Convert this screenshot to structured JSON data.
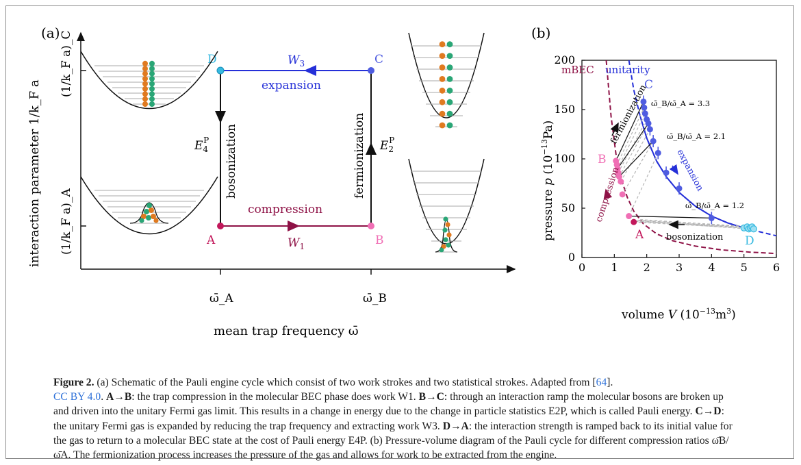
{
  "panel_a": {
    "label": "(a)",
    "y_axis_label": "interaction parameter 1/k_F a",
    "y_tick_c": "(1/k_F a)_C",
    "y_tick_a": "(1/k_F a)_A",
    "x_axis_label": "mean trap frequency ω̄",
    "x_tick_a": "ω̄_A",
    "x_tick_b": "ω̄_B",
    "points": {
      "A": "A",
      "B": "B",
      "C": "C",
      "D": "D"
    },
    "strokes": {
      "top": "expansion",
      "top_work": "W_3",
      "bottom": "compression",
      "bottom_work": "W_1",
      "left": "bosonization",
      "left_energy": "E_4^P",
      "right": "fermionization",
      "right_energy": "E_2^P"
    },
    "colors": {
      "A": "#c2185b",
      "B": "#f06fb5",
      "C": "#4f5ce0",
      "D": "#36b9e0",
      "compression": "#8e1246",
      "expansion": "#2530d8",
      "orange": "#e07a20",
      "green": "#2aa676"
    }
  },
  "panel_b": {
    "label": "(b)",
    "curve_labels": {
      "mbec": "mBEC",
      "unitarity": "unitarity"
    },
    "annotations": {
      "fermionization": "fermionization",
      "expansion": "expansion",
      "compression": "compression",
      "bosonization": "bosonization",
      "ratio_33": "ω̄_B/ω̄_A = 3.3",
      "ratio_21": "ω̄_B/ω̄_A = 2.1",
      "ratio_12": "ω̄_B/ω̄_A = 1.2"
    },
    "point_labels": {
      "A": "A",
      "B": "B",
      "C": "C",
      "D": "D"
    },
    "x_axis_label": "volume V (10^-13 m^3)",
    "y_axis_label": "pressure p (10^-13 Pa)"
  },
  "chart_data": {
    "type": "scatter",
    "xlabel": "volume V (10^-13 m^3)",
    "ylabel": "pressure p (10^-13 Pa)",
    "xlim": [
      0,
      6
    ],
    "ylim": [
      0,
      200
    ],
    "x_ticks": [
      "0",
      "1",
      "2",
      "3",
      "4",
      "5",
      "6"
    ],
    "y_ticks": [
      "0",
      "50",
      "100",
      "150",
      "200"
    ],
    "series": [
      {
        "name": "mBEC",
        "type": "line",
        "style": "dashed",
        "color": "#8e1246",
        "x": [
          0.75,
          0.9,
          1.05,
          1.2,
          1.4,
          1.6,
          1.9,
          2.3,
          2.8,
          3.5,
          4.3,
          5.2,
          6.0
        ],
        "y": [
          200,
          143,
          105,
          81,
          61,
          47,
          34,
          24,
          17,
          11.5,
          7.8,
          5.4,
          4.0
        ]
      },
      {
        "name": "unitarity",
        "type": "line",
        "style": "solid",
        "color": "#2530d8",
        "x": [
          1.45,
          1.6,
          1.8,
          2.0,
          2.3,
          2.6,
          3.0,
          3.5,
          4.0,
          4.5,
          5.0,
          5.5,
          6.0
        ],
        "y": [
          200,
          170,
          143,
          121,
          98,
          82,
          66,
          52,
          42,
          35,
          30,
          26,
          22
        ]
      },
      {
        "name": "B points",
        "type": "scatter",
        "color": "#f06fb5",
        "x": [
          1.05,
          1.08,
          1.1,
          1.12,
          1.15,
          1.2,
          1.25,
          1.45
        ],
        "y": [
          98,
          94,
          90,
          86,
          82,
          77,
          64,
          42
        ]
      },
      {
        "name": "C points",
        "type": "scatter",
        "color": "#4f5ce0",
        "x": [
          1.9,
          1.92,
          1.95,
          2.0,
          2.05,
          2.1,
          2.2,
          2.35,
          2.6,
          3.0,
          4.0
        ],
        "y": [
          158,
          152,
          146,
          140,
          136,
          130,
          118,
          106,
          86,
          70,
          40
        ]
      },
      {
        "name": "D points",
        "type": "scatter",
        "color": "#36b9e0",
        "x": [
          5.0,
          5.1,
          5.15,
          5.2,
          5.25,
          5.3
        ],
        "y": [
          30,
          31,
          29,
          30,
          31,
          29
        ]
      },
      {
        "name": "A",
        "type": "scatter",
        "color": "#c2185b",
        "x": [
          1.6
        ],
        "y": [
          36
        ]
      }
    ]
  },
  "caption": {
    "figure": "Figure 2.",
    "t1": " (a) Schematic of the Pauli engine cycle which consist of two work strokes and two statistical strokes. Adapted from [",
    "ref": "64",
    "t2": "].",
    "license": "CC BY 4.0",
    "t3": ". ",
    "ab": "A→B",
    "t4": ": the trap compression in the molecular BEC phase does work W1. ",
    "bc": "B→C",
    "t5": ": through an interaction ramp the molecular bosons are broken up and driven into the unitary Fermi gas limit. This results in a change in energy due to the change in particle statistics E2P, which is called Pauli energy. ",
    "cd": "C→D",
    "t6": ": the unitary Fermi gas is expanded by reducing the trap frequency and extracting work W3. ",
    "da": "D→A",
    "t7": ": the interaction strength is ramped back to its initial value for the gas to return to a molecular BEC state at the cost of Pauli energy E4P. (b) Pressure-volume diagram of the Pauli cycle for different compression ratios ω̄B/ω̄A. The fermionization process increases the pressure of the gas and allows for work to be extracted from the engine."
  }
}
